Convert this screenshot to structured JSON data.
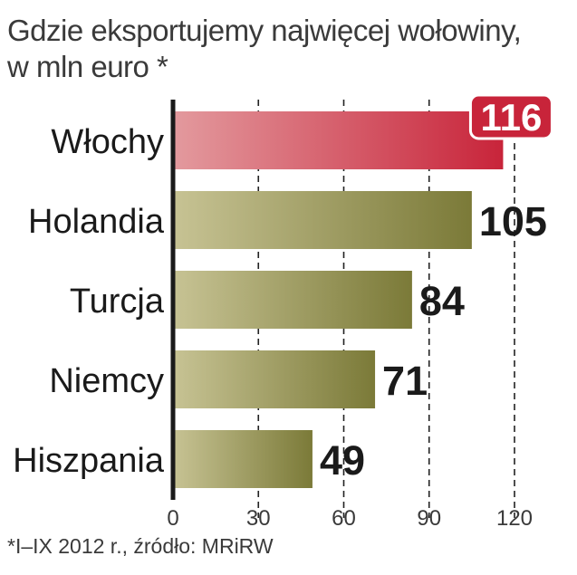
{
  "title_lines": [
    "Gdzie eksportujemy najwięcej wołowiny,",
    "w mln euro *"
  ],
  "footnote": "*I–IX 2012 r., źródło: MRiRW",
  "colors": {
    "highlight_start": "#e39a9e",
    "highlight_end": "#c8243a",
    "bar_start": "#c7c394",
    "bar_end": "#7b7a38",
    "axis": "#1a1a1a",
    "label": "#1a1a1a"
  },
  "chart_data": {
    "type": "bar",
    "orientation": "horizontal",
    "title": "Gdzie eksportujemy najwięcej wołowiny, w mln euro *",
    "categories": [
      "Włochy",
      "Holandia",
      "Turcja",
      "Niemcy",
      "Hiszpania"
    ],
    "values": [
      116,
      105,
      84,
      71,
      49
    ],
    "value_labels": [
      "116",
      "105",
      "84",
      "71",
      "49"
    ],
    "highlighted": "Włochy",
    "xlim": [
      0,
      120
    ],
    "xticks": [
      "0",
      "30",
      "60",
      "90",
      "120"
    ],
    "grid": "vertical dashed lines at ticks",
    "legend": "none"
  }
}
